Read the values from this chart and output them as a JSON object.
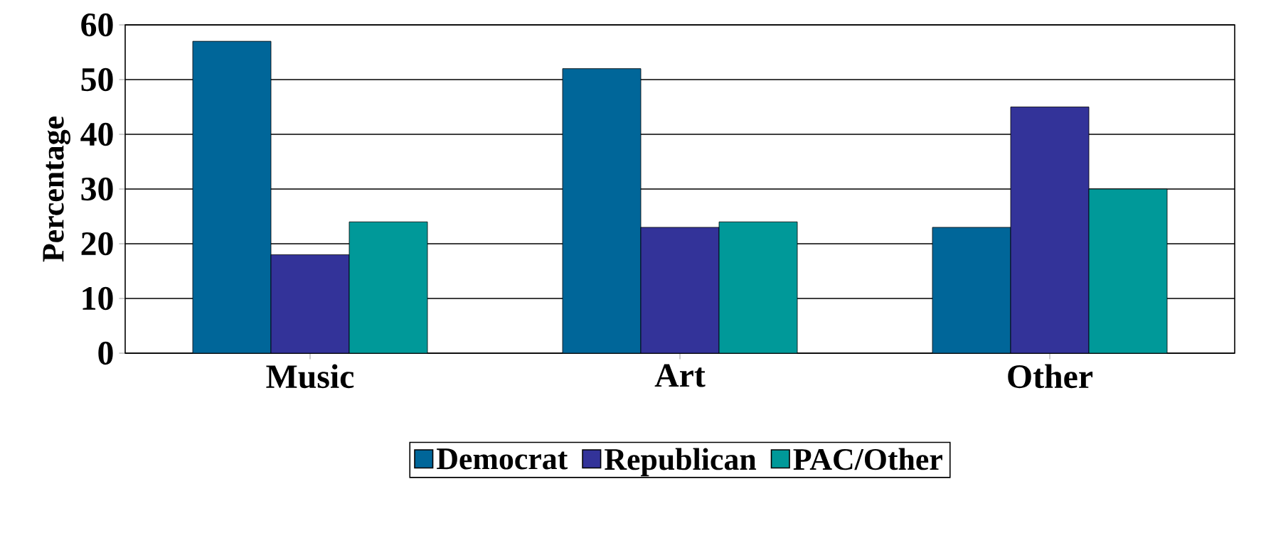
{
  "chart_data": {
    "type": "bar",
    "ylabel": "Percentage",
    "categories": [
      "Music",
      "Art",
      "Other"
    ],
    "series": [
      {
        "name": "Democrat",
        "color": "#006699",
        "values": [
          57,
          52,
          23
        ]
      },
      {
        "name": "Republican",
        "color": "#333399",
        "values": [
          18,
          23,
          45
        ]
      },
      {
        "name": "PAC/Other",
        "color": "#009999",
        "values": [
          24,
          24,
          30
        ]
      }
    ],
    "ylim": [
      0,
      60
    ],
    "yticks": [
      0,
      10,
      20,
      30,
      40,
      50,
      60
    ],
    "grid": "y",
    "legend": "bottom"
  }
}
